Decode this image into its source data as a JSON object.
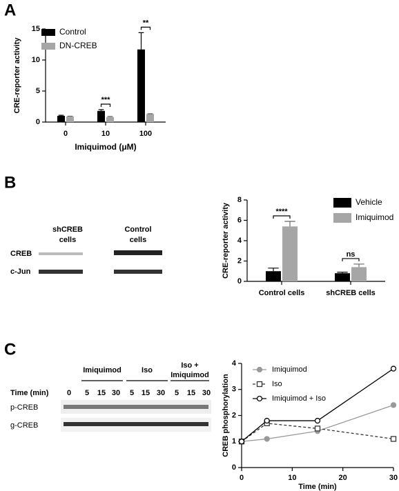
{
  "panel_labels": [
    "A",
    "B",
    "C"
  ],
  "chart_data": [
    {
      "type": "bar",
      "categories": [
        "0",
        "10",
        "100"
      ],
      "x_label": "Imiquimod (μM)",
      "y_label": "CRE-reporter activity",
      "ylim": [
        0,
        15
      ],
      "yticks": [
        0,
        5,
        10,
        15
      ],
      "legend": "top-left",
      "series": [
        {
          "name": "Control",
          "color": "#000000",
          "values": [
            1.0,
            1.8,
            11.7
          ],
          "errors": [
            0.1,
            0.2,
            2.7
          ]
        },
        {
          "name": "DN-CREB",
          "color": "#a6a6a6",
          "values": [
            0.9,
            0.8,
            1.3
          ],
          "errors": [
            0.05,
            0.1,
            0.05
          ]
        }
      ],
      "significance": [
        null,
        "***",
        "**"
      ]
    },
    {
      "type": "bar",
      "categories": [
        "Control cells",
        "shCREB cells"
      ],
      "y_label": "CRE-reporter activity",
      "ylim": [
        0,
        8
      ],
      "yticks": [
        0,
        2,
        4,
        6,
        8
      ],
      "legend": "right",
      "series": [
        {
          "name": "Vehicle",
          "color": "#000000",
          "values": [
            1.0,
            0.8
          ],
          "errors": [
            0.3,
            0.1
          ]
        },
        {
          "name": "Imiquimod",
          "color": "#a6a6a6",
          "values": [
            5.4,
            1.4
          ],
          "errors": [
            0.5,
            0.3
          ]
        }
      ],
      "significance": [
        "****",
        "ns"
      ]
    },
    {
      "type": "line",
      "x": [
        0,
        5,
        15,
        30
      ],
      "x_label": "Time (min)",
      "y_label": "CREB phosphorylation",
      "xlim": [
        0,
        30
      ],
      "xticks": [
        0,
        10,
        20,
        30
      ],
      "ylim": [
        0,
        4
      ],
      "yticks": [
        0,
        1,
        2,
        3,
        4
      ],
      "legend": "top-left",
      "series": [
        {
          "name": "Imiquimod",
          "color": "#999999",
          "marker": "circle",
          "filled": true,
          "dashed": false,
          "values": [
            1,
            1.1,
            1.4,
            2.4
          ]
        },
        {
          "name": "Iso",
          "color": "#333333",
          "marker": "square",
          "filled": false,
          "dashed": true,
          "values": [
            1,
            1.7,
            1.5,
            1.1
          ]
        },
        {
          "name": "Imiquimod + Iso",
          "color": "#000000",
          "marker": "circle",
          "filled": false,
          "dashed": false,
          "values": [
            1,
            1.8,
            1.8,
            3.8
          ]
        }
      ]
    }
  ],
  "blot_b": {
    "groups": [
      [
        "shCREB",
        "cells"
      ],
      [
        "Control",
        "cells"
      ]
    ],
    "rows": [
      "CREB",
      "c-Jun"
    ]
  },
  "blot_c": {
    "treatments": [
      [
        "Imiquimod"
      ],
      [
        "Iso"
      ],
      [
        "Iso +",
        "Imiquimod"
      ]
    ],
    "time_label": "Time (min)",
    "times": [
      0,
      5,
      15,
      30,
      5,
      15,
      30,
      5,
      15,
      30
    ],
    "rows": [
      "p-CREB",
      "g-CREB"
    ]
  }
}
